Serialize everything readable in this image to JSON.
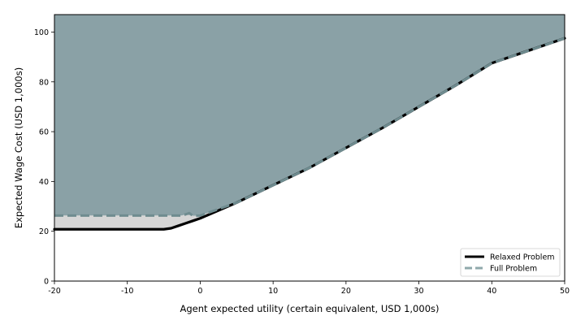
{
  "chart_data": {
    "type": "area",
    "title": "",
    "xlabel": "Agent expected utility (certain equivalent, USD 1,000s)",
    "ylabel": "Expected Wage Cost (USD 1,000s)",
    "xlim": [
      -20,
      50
    ],
    "ylim": [
      0,
      107
    ],
    "xticks": [
      -20,
      -10,
      0,
      10,
      20,
      30,
      40,
      50
    ],
    "yticks": [
      0,
      20,
      40,
      60,
      80,
      100
    ],
    "grid": false,
    "legend_position": "bottom-right",
    "series": [
      {
        "name": "Relaxed Problem",
        "style": "solid",
        "color": "#000000",
        "x": [
          -20,
          -15,
          -10,
          -5,
          -4,
          -3,
          -2,
          -1,
          0,
          5,
          10,
          15,
          20,
          25,
          30,
          35,
          40,
          45,
          50
        ],
        "y": [
          20.8,
          20.8,
          20.8,
          20.8,
          21.2,
          22.2,
          23.2,
          24.2,
          25.2,
          31.5,
          38.5,
          45.5,
          53.5,
          61.5,
          70,
          78.5,
          87.5,
          92.5,
          97.5
        ]
      },
      {
        "name": "Full Problem",
        "style": "dashed",
        "color": "#8fa8ab",
        "x": [
          -20,
          -15,
          -10,
          -5,
          -2.5,
          -1.5,
          -1,
          0,
          5,
          10,
          15,
          20,
          25,
          30,
          35,
          40,
          45,
          50
        ],
        "y": [
          26.3,
          26.3,
          26.3,
          26.3,
          26.3,
          27.3,
          26.2,
          26.3,
          31.5,
          38.5,
          45.5,
          53.5,
          61.5,
          70,
          78.5,
          87.5,
          92.5,
          97.5
        ]
      }
    ],
    "colors": {
      "feasible_fill": "#8aa1a6",
      "gap_fill": "#d6d6d6",
      "relaxed_line": "#000000",
      "full_line": "#6f8c90"
    }
  }
}
